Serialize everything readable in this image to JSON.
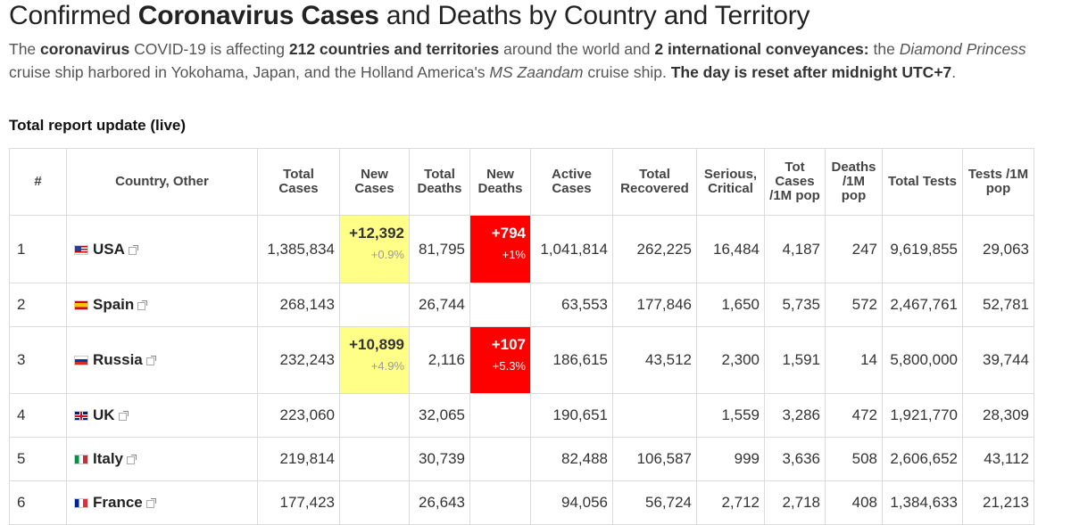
{
  "title": {
    "part1": "Confirmed ",
    "bold": "Coronavirus Cases",
    "part2": " and Deaths by Country and Territory"
  },
  "intro": {
    "t1": "The ",
    "b1": "coronavirus",
    "t2": " COVID-19 is affecting ",
    "b2": "212 countries and territories",
    "t3": " around the world and ",
    "b3": "2 international conveyances:",
    "t4": " the ",
    "i1": "Diamond Princess",
    "t5": " cruise ship harbored in Yokohama, Japan, and the Holland America's ",
    "i2": "MS Zaandam",
    "t6": " cruise ship. ",
    "b4": "The day is reset after midnight UTC+7",
    "t7": "."
  },
  "subhead": "Total report update (live)",
  "columns": [
    "#",
    "Country, Other",
    "Total Cases",
    "New Cases",
    "Total Deaths",
    "New Deaths",
    "Active Cases",
    "Total Recovered",
    "Serious, Critical",
    "Tot Cases /1M pop",
    "Deaths /1M pop",
    "Total Tests",
    "Tests /1M pop"
  ],
  "rows": [
    {
      "rank": "1",
      "country": "USA",
      "flag": "us",
      "total_cases": "1,385,834",
      "new_cases": "+12,392",
      "new_cases_pct": "+0.9%",
      "total_deaths": "81,795",
      "new_deaths": "+794",
      "new_deaths_pct": "+1%",
      "active": "1,041,814",
      "recovered": "262,225",
      "serious": "16,484",
      "cases_1m": "4,187",
      "deaths_1m": "247",
      "tests": "9,619,855",
      "tests_1m": "29,063"
    },
    {
      "rank": "2",
      "country": "Spain",
      "flag": "es",
      "total_cases": "268,143",
      "new_cases": "",
      "new_cases_pct": "",
      "total_deaths": "26,744",
      "new_deaths": "",
      "new_deaths_pct": "",
      "active": "63,553",
      "recovered": "177,846",
      "serious": "1,650",
      "cases_1m": "5,735",
      "deaths_1m": "572",
      "tests": "2,467,761",
      "tests_1m": "52,781"
    },
    {
      "rank": "3",
      "country": "Russia",
      "flag": "ru",
      "total_cases": "232,243",
      "new_cases": "+10,899",
      "new_cases_pct": "+4.9%",
      "total_deaths": "2,116",
      "new_deaths": "+107",
      "new_deaths_pct": "+5.3%",
      "active": "186,615",
      "recovered": "43,512",
      "serious": "2,300",
      "cases_1m": "1,591",
      "deaths_1m": "14",
      "tests": "5,800,000",
      "tests_1m": "39,744"
    },
    {
      "rank": "4",
      "country": "UK",
      "flag": "gb",
      "total_cases": "223,060",
      "new_cases": "",
      "new_cases_pct": "",
      "total_deaths": "32,065",
      "new_deaths": "",
      "new_deaths_pct": "",
      "active": "190,651",
      "recovered": "",
      "serious": "1,559",
      "cases_1m": "3,286",
      "deaths_1m": "472",
      "tests": "1,921,770",
      "tests_1m": "28,309"
    },
    {
      "rank": "5",
      "country": "Italy",
      "flag": "it",
      "total_cases": "219,814",
      "new_cases": "",
      "new_cases_pct": "",
      "total_deaths": "30,739",
      "new_deaths": "",
      "new_deaths_pct": "",
      "active": "82,488",
      "recovered": "106,587",
      "serious": "999",
      "cases_1m": "3,636",
      "deaths_1m": "508",
      "tests": "2,606,652",
      "tests_1m": "43,112"
    },
    {
      "rank": "6",
      "country": "France",
      "flag": "fr",
      "total_cases": "177,423",
      "new_cases": "",
      "new_cases_pct": "",
      "total_deaths": "26,643",
      "new_deaths": "",
      "new_deaths_pct": "",
      "active": "94,056",
      "recovered": "56,724",
      "serious": "2,712",
      "cases_1m": "2,718",
      "deaths_1m": "408",
      "tests": "1,384,633",
      "tests_1m": "21,213"
    }
  ],
  "colors": {
    "new_cases_highlight": "#ffff88",
    "new_deaths_highlight": "#ff0000"
  },
  "icons": {
    "external_link": "external-link-icon"
  }
}
